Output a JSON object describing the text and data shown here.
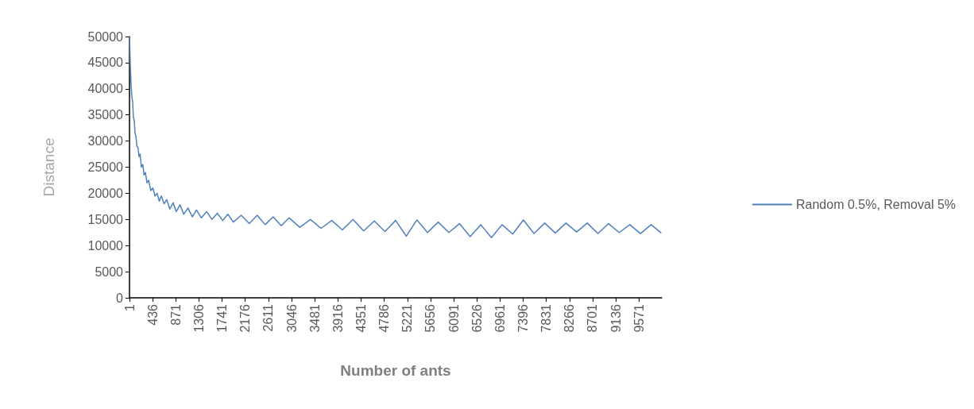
{
  "chart_data": {
    "type": "line",
    "xlabel": "Number of ants",
    "ylabel": "Distance",
    "legend": "right",
    "grid": false,
    "marker": "none",
    "line_style": "solid",
    "xlim": [
      1,
      10000
    ],
    "xticks": [
      1,
      436,
      871,
      1306,
      1741,
      2176,
      2611,
      3046,
      3481,
      3916,
      4351,
      4786,
      5221,
      5656,
      6091,
      6526,
      6961,
      7396,
      7831,
      8266,
      8701,
      9136,
      9571
    ],
    "ylim": [
      0,
      50000
    ],
    "yticks": [
      0,
      5000,
      10000,
      15000,
      20000,
      25000,
      30000,
      35000,
      40000,
      45000,
      50000
    ],
    "series": [
      {
        "name": "Random 0.5%, Removal 5%",
        "color": "#4f81bd",
        "x": [
          1,
          15,
          30,
          45,
          60,
          75,
          90,
          105,
          120,
          140,
          160,
          180,
          200,
          225,
          250,
          275,
          300,
          330,
          360,
          400,
          440,
          480,
          520,
          560,
          600,
          650,
          700,
          760,
          820,
          880,
          950,
          1020,
          1100,
          1180,
          1260,
          1350,
          1450,
          1550,
          1650,
          1750,
          1850,
          1950,
          2100,
          2250,
          2400,
          2550,
          2700,
          2850,
          3000,
          3200,
          3400,
          3600,
          3800,
          4000,
          4200,
          4400,
          4600,
          4800,
          5000,
          5200,
          5400,
          5600,
          5800,
          6000,
          6200,
          6400,
          6600,
          6800,
          7000,
          7200,
          7400,
          7600,
          7800,
          8000,
          8200,
          8400,
          8600,
          8800,
          9000,
          9200,
          9400,
          9600,
          9800,
          9990
        ],
        "values": [
          50000,
          45000,
          41000,
          38500,
          37500,
          34500,
          34000,
          31500,
          31000,
          29000,
          28800,
          27000,
          27500,
          25000,
          25500,
          23500,
          24000,
          22000,
          22500,
          20500,
          21000,
          19500,
          20000,
          18500,
          19500,
          18000,
          18800,
          17000,
          18200,
          16500,
          17800,
          16000,
          17200,
          15500,
          16800,
          15300,
          16500,
          15000,
          16200,
          14800,
          16000,
          14500,
          15800,
          14200,
          15800,
          14000,
          15500,
          13800,
          15300,
          13500,
          15000,
          13300,
          14800,
          13000,
          15000,
          12800,
          14700,
          12700,
          14800,
          11800,
          14900,
          12500,
          14500,
          12500,
          14200,
          11700,
          14000,
          11500,
          14000,
          12200,
          14900,
          12300,
          14300,
          12400,
          14300,
          12600,
          14300,
          12300,
          14200,
          12500,
          14000,
          12300,
          14000,
          12400
        ]
      }
    ]
  }
}
